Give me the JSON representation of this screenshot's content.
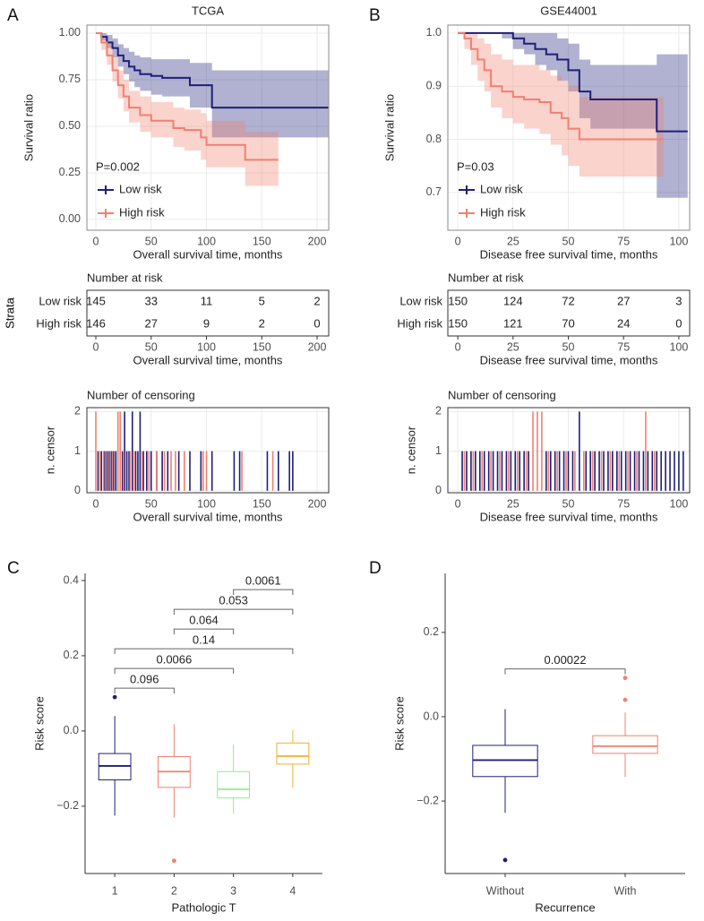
{
  "chart_data": [
    {
      "type": "km",
      "label": "A",
      "title": "TCGA",
      "xlabel": "Overall survival time, months",
      "ylabel": "Survival ratio",
      "xlim": [
        -8.1,
        210.5
      ],
      "xticks": [
        0,
        50,
        100,
        150,
        200
      ],
      "ylim": [
        -0.058,
        1.043
      ],
      "yticks": [
        {
          "value": 0,
          "label": "0.00"
        },
        {
          "value": 0.25,
          "label": "0.25"
        },
        {
          "value": 0.5,
          "label": "0.50"
        },
        {
          "value": 0.75,
          "label": "0.75"
        },
        {
          "value": 1,
          "label": "1.00"
        }
      ],
      "annotation": "P=0.002",
      "grid": true,
      "series": [
        {
          "name": "Low risk",
          "color": "#1f1f7a",
          "x": [
            0,
            5,
            10,
            15,
            20,
            25,
            30,
            35,
            40,
            50,
            60,
            85,
            100,
            105,
            210
          ],
          "values": [
            1,
            0.98,
            0.95,
            0.92,
            0.88,
            0.85,
            0.82,
            0.8,
            0.78,
            0.77,
            0.76,
            0.72,
            0.72,
            0.6,
            0.6
          ],
          "lower": [
            1,
            0.96,
            0.92,
            0.87,
            0.82,
            0.78,
            0.74,
            0.71,
            0.69,
            0.67,
            0.66,
            0.6,
            0.6,
            0.44,
            0.44
          ],
          "upper": [
            1,
            1,
            0.99,
            0.97,
            0.94,
            0.92,
            0.9,
            0.88,
            0.87,
            0.86,
            0.86,
            0.84,
            0.84,
            0.8,
            0.8
          ]
        },
        {
          "name": "High risk",
          "color": "#f08070",
          "x": [
            0,
            5,
            10,
            15,
            20,
            25,
            30,
            40,
            50,
            70,
            80,
            95,
            100,
            135,
            165
          ],
          "values": [
            1,
            0.95,
            0.88,
            0.8,
            0.72,
            0.66,
            0.6,
            0.56,
            0.53,
            0.49,
            0.48,
            0.44,
            0.4,
            0.32,
            0.32
          ],
          "lower": [
            1,
            0.91,
            0.83,
            0.74,
            0.65,
            0.58,
            0.52,
            0.47,
            0.44,
            0.39,
            0.37,
            0.32,
            0.28,
            0.18,
            0.18
          ],
          "upper": [
            1,
            0.99,
            0.94,
            0.87,
            0.8,
            0.75,
            0.69,
            0.66,
            0.63,
            0.6,
            0.59,
            0.57,
            0.53,
            0.47,
            0.47
          ]
        }
      ]
    },
    {
      "type": "risk-table",
      "title": "Number at risk",
      "ylabel": "Strata",
      "xlabel": "Overall survival time, months",
      "xlim": [
        -8.1,
        210.5
      ],
      "xticks": [
        0,
        50,
        100,
        150,
        200
      ],
      "series": [
        {
          "name": "Low risk",
          "color": "#1f1f7a",
          "values": [
            145,
            33,
            11,
            5,
            2
          ]
        },
        {
          "name": "High risk",
          "color": "#f08070",
          "values": [
            146,
            27,
            9,
            2,
            0
          ]
        }
      ]
    },
    {
      "type": "censor",
      "title": "Number of censoring",
      "ylabel": "n. censor",
      "xlabel": "Overall survival time, months",
      "xlim": [
        -8.1,
        210.5
      ],
      "xticks": [
        0,
        50,
        100,
        150,
        200
      ],
      "ylim": [
        -0.05,
        2.1
      ],
      "yticks": [
        0,
        1,
        2
      ],
      "grid": true,
      "series": [
        {
          "name": "Low risk",
          "color": "#1f1f7a",
          "x": [
            2,
            5,
            8,
            10,
            12,
            14,
            16,
            18,
            20,
            24,
            26,
            28,
            30,
            33,
            36,
            38,
            40,
            43,
            46,
            50,
            55,
            60,
            65,
            75,
            85,
            95,
            105,
            125,
            130,
            155,
            165,
            175,
            178
          ],
          "values": [
            1,
            1,
            1,
            1,
            1,
            1,
            1,
            1,
            1,
            1,
            2,
            1,
            1,
            2,
            1,
            1,
            2,
            1,
            1,
            1,
            1,
            1,
            1,
            1,
            1,
            1,
            1,
            1,
            1,
            1,
            1,
            1,
            1
          ]
        },
        {
          "name": "High risk",
          "color": "#f08070",
          "x": [
            0,
            4,
            7,
            11,
            15,
            20,
            22,
            25,
            31,
            35,
            42,
            48,
            55,
            62,
            68,
            72,
            80,
            97,
            100,
            132,
            160
          ],
          "values": [
            2,
            1,
            1,
            1,
            1,
            2,
            2,
            1,
            1,
            1,
            1,
            1,
            1,
            1,
            1,
            1,
            1,
            1,
            1,
            1,
            1
          ]
        }
      ]
    },
    {
      "type": "km",
      "label": "B",
      "title": "GSE44001",
      "xlabel": "Disease free survival time, months",
      "ylabel": "Survival ratio",
      "xlim": [
        -4.5,
        104.9
      ],
      "xticks": [
        0,
        25,
        50,
        75,
        100
      ],
      "ylim": [
        0.629,
        1.015
      ],
      "yticks": [
        0.7,
        0.8,
        0.9,
        {
          "value": 1,
          "label": "1.0"
        }
      ],
      "annotation": "P=0.03",
      "grid": true,
      "series": [
        {
          "name": "Low risk",
          "color": "#1f1f7a",
          "x": [
            0,
            10,
            20,
            25,
            30,
            35,
            40,
            45,
            50,
            55,
            60,
            65,
            87,
            90,
            104
          ],
          "values": [
            1,
            1,
            1,
            0.99,
            0.98,
            0.97,
            0.96,
            0.95,
            0.93,
            0.89,
            0.875,
            0.875,
            0.875,
            0.815,
            0.815
          ],
          "lower": [
            1,
            1,
            0.99,
            0.97,
            0.96,
            0.94,
            0.93,
            0.91,
            0.89,
            0.84,
            0.82,
            0.82,
            0.82,
            0.69,
            0.69
          ],
          "upper": [
            1,
            1,
            1,
            1,
            1,
            1,
            1,
            0.99,
            0.98,
            0.95,
            0.94,
            0.94,
            0.94,
            0.96,
            0.96
          ]
        },
        {
          "name": "High risk",
          "color": "#f08070",
          "x": [
            0,
            3,
            6,
            9,
            12,
            15,
            20,
            25,
            30,
            37,
            42,
            47,
            50,
            55,
            60,
            70,
            93
          ],
          "values": [
            1,
            0.99,
            0.97,
            0.95,
            0.93,
            0.9,
            0.89,
            0.88,
            0.875,
            0.87,
            0.85,
            0.84,
            0.82,
            0.8,
            0.8,
            0.8,
            0.8
          ],
          "lower": [
            1,
            0.97,
            0.94,
            0.91,
            0.89,
            0.86,
            0.84,
            0.83,
            0.82,
            0.81,
            0.79,
            0.77,
            0.75,
            0.73,
            0.73,
            0.73,
            0.73
          ],
          "upper": [
            1,
            1,
            1,
            0.99,
            0.98,
            0.96,
            0.95,
            0.94,
            0.94,
            0.93,
            0.92,
            0.91,
            0.9,
            0.88,
            0.88,
            0.88,
            0.88
          ]
        }
      ]
    },
    {
      "type": "risk-table",
      "title": "Number at risk",
      "ylabel": "Strata",
      "xlabel": "Disease free survival time, months",
      "xlim": [
        -4.5,
        104.9
      ],
      "xticks": [
        0,
        25,
        50,
        75,
        100
      ],
      "series": [
        {
          "name": "Low risk",
          "color": "#1f1f7a",
          "values": [
            150,
            124,
            72,
            27,
            3
          ]
        },
        {
          "name": "High risk",
          "color": "#f08070",
          "values": [
            150,
            121,
            70,
            24,
            0
          ]
        }
      ]
    },
    {
      "type": "censor",
      "title": "Number of censoring",
      "ylabel": "n. censor",
      "xlabel": "Disease free survival time, months",
      "xlim": [
        -4.5,
        104.9
      ],
      "xticks": [
        0,
        25,
        50,
        75,
        100
      ],
      "ylim": [
        -0.05,
        2.1
      ],
      "yticks": [
        0,
        1,
        2
      ],
      "grid": true,
      "series": [
        {
          "name": "Low risk",
          "color": "#1f1f7a",
          "x": [
            2,
            4,
            6,
            8,
            10,
            12,
            14,
            16,
            18,
            20,
            22,
            24,
            26,
            28,
            30,
            32,
            40,
            42,
            44,
            46,
            48,
            50,
            52,
            55,
            58,
            60,
            62,
            64,
            66,
            68,
            70,
            72,
            74,
            76,
            78,
            80,
            82,
            84,
            86,
            88,
            90,
            92,
            94,
            96,
            98,
            100,
            102
          ],
          "values": [
            1,
            1,
            1,
            1,
            1,
            1,
            1,
            1,
            1,
            1,
            1,
            1,
            1,
            1,
            1,
            1,
            1,
            1,
            1,
            1,
            1,
            1,
            1,
            2,
            1,
            1,
            1,
            1,
            1,
            1,
            1,
            1,
            1,
            1,
            1,
            1,
            1,
            1,
            1,
            1,
            1,
            1,
            1,
            1,
            1,
            1,
            1
          ]
        },
        {
          "name": "High risk",
          "color": "#f08070",
          "x": [
            3,
            7,
            11,
            15,
            19,
            23,
            27,
            31,
            34,
            36,
            38,
            41,
            45,
            49,
            53,
            57,
            61,
            65,
            69,
            73,
            77,
            81,
            85,
            89
          ],
          "values": [
            1,
            1,
            1,
            1,
            1,
            1,
            1,
            1,
            2,
            2,
            2,
            1,
            1,
            1,
            1,
            1,
            1,
            1,
            1,
            1,
            1,
            1,
            2,
            1
          ]
        }
      ]
    },
    {
      "type": "box",
      "label": "C",
      "xlabel": "Pathologic T",
      "ylabel": "Risk score",
      "ylim": [
        -0.379,
        0.419
      ],
      "yticks": [
        {
          "value": -0.2,
          "label": "−0.2"
        },
        {
          "value": 0,
          "label": "0.0"
        },
        0.2,
        0.4
      ],
      "categories": [
        "1",
        "2",
        "3",
        "4"
      ],
      "colors": [
        "#1f1f7a",
        "#f08070",
        "#90ee90",
        "#f0b030"
      ],
      "boxes": [
        {
          "min": -0.225,
          "q1": -0.13,
          "median": -0.093,
          "q3": -0.06,
          "max": 0.04,
          "outliers": [
            0.09
          ]
        },
        {
          "min": -0.23,
          "q1": -0.15,
          "median": -0.108,
          "q3": -0.068,
          "max": 0.018,
          "outliers": [
            -0.345
          ]
        },
        {
          "min": -0.22,
          "q1": -0.178,
          "median": -0.155,
          "q3": -0.108,
          "max": -0.035,
          "outliers": []
        },
        {
          "min": -0.15,
          "q1": -0.088,
          "median": -0.067,
          "q3": -0.032,
          "max": 0.003,
          "outliers": []
        }
      ],
      "comparisons": [
        {
          "groups": [
            "1",
            "2"
          ],
          "p": 0.096
        },
        {
          "groups": [
            "1",
            "3"
          ],
          "p": 0.0066
        },
        {
          "groups": [
            "1",
            "4"
          ],
          "p": 0.14
        },
        {
          "groups": [
            "2",
            "3"
          ],
          "p": 0.064
        },
        {
          "groups": [
            "2",
            "4"
          ],
          "p": 0.053
        },
        {
          "groups": [
            "3",
            "4"
          ],
          "p": 0.0061
        }
      ]
    },
    {
      "type": "box",
      "label": "D",
      "xlabel": "Recurrence",
      "ylabel": "Risk score",
      "ylim": [
        -0.372,
        0.34
      ],
      "yticks": [
        {
          "value": -0.2,
          "label": "−0.2"
        },
        {
          "value": 0,
          "label": "0.0"
        },
        0.2
      ],
      "categories": [
        "Without",
        "With"
      ],
      "colors": [
        "#1f1f7a",
        "#f08070"
      ],
      "boxes": [
        {
          "min": -0.228,
          "q1": -0.142,
          "median": -0.103,
          "q3": -0.068,
          "max": 0.018,
          "outliers": [
            -0.34
          ]
        },
        {
          "min": -0.143,
          "q1": -0.087,
          "median": -0.07,
          "q3": -0.045,
          "max": 0.01,
          "outliers": [
            0.092,
            0.04
          ]
        }
      ],
      "comparisons": [
        {
          "groups": [
            "Without",
            "With"
          ],
          "p": 0.00022
        }
      ]
    }
  ]
}
